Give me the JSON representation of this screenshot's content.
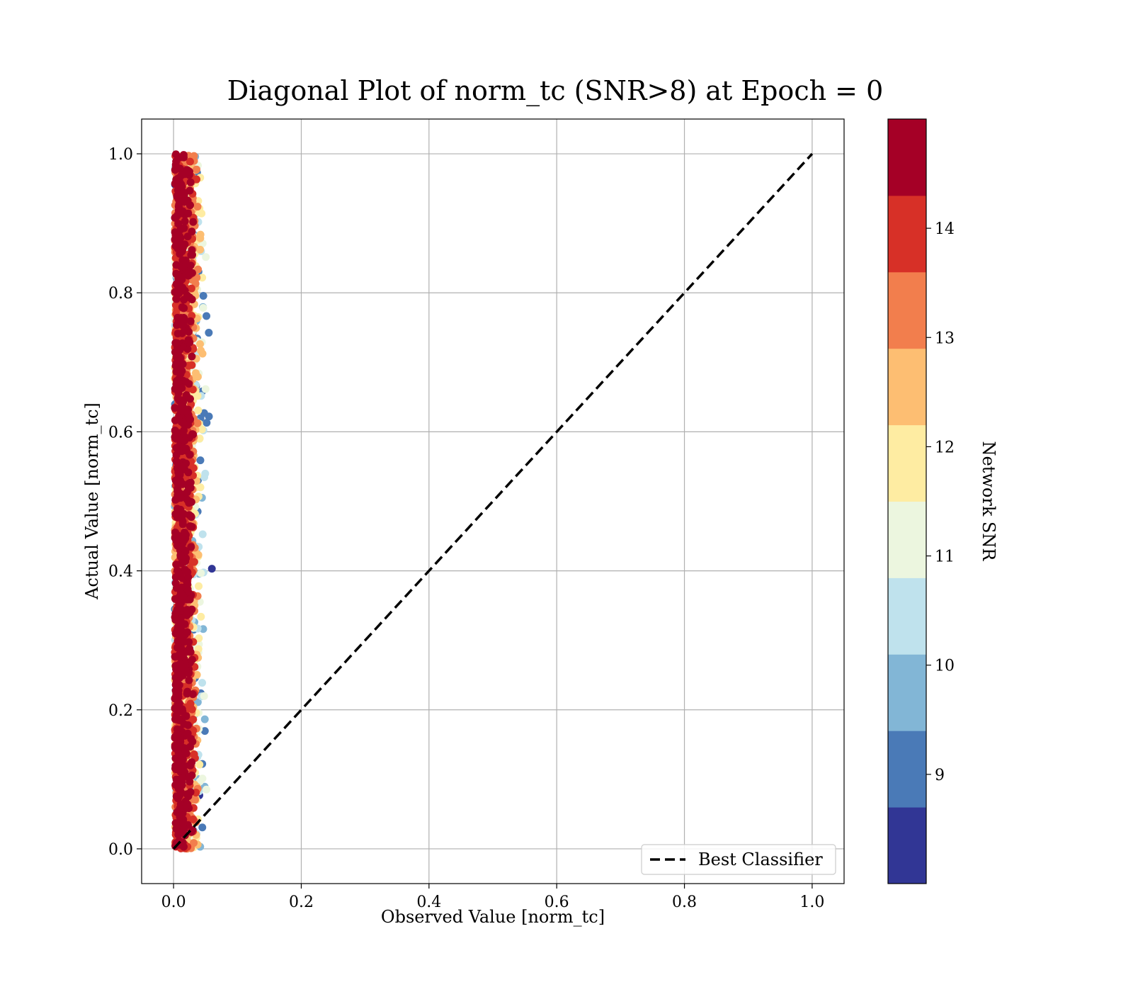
{
  "chart_data": {
    "type": "scatter",
    "title": "Diagonal Plot of norm_tc (SNR>8) at Epoch = 0",
    "xlabel": "Observed Value [norm_tc]",
    "ylabel": "Actual Value [norm_tc]",
    "xlim": [
      -0.05,
      1.05
    ],
    "ylim": [
      -0.05,
      1.05
    ],
    "xticks": [
      "0.0",
      "0.2",
      "0.4",
      "0.6",
      "0.8",
      "1.0"
    ],
    "xtick_values": [
      0,
      0.2,
      0.4,
      0.6,
      0.8,
      1.0
    ],
    "yticks": [
      "0.0",
      "0.2",
      "0.4",
      "0.6",
      "0.8",
      "1.0"
    ],
    "ytick_values": [
      0,
      0.2,
      0.4,
      0.6,
      0.8,
      1.0
    ],
    "grid": true,
    "scatter_region": {
      "x_range": [
        0.0,
        0.06
      ],
      "y_range": [
        0.0,
        1.0
      ],
      "note_colors": "colored by Network SNR"
    },
    "reference_line": {
      "name": "Best Classifier",
      "x": [
        0,
        1
      ],
      "y": [
        0,
        1
      ],
      "style": "dashed",
      "color": "#000000"
    },
    "legend": {
      "placement": "lower-right",
      "entries": [
        "Best Classifier"
      ]
    },
    "colorbar": {
      "label": "Network SNR",
      "range": [
        8,
        15
      ],
      "ticks": [
        "9",
        "10",
        "11",
        "12",
        "13",
        "14"
      ],
      "tick_values": [
        9,
        10,
        11,
        12,
        13,
        14
      ],
      "colors": [
        "#313695",
        "#4a7ab7",
        "#82b6d6",
        "#bfe2ed",
        "#ecf6df",
        "#feeca2",
        "#fdbe72",
        "#f27e4d",
        "#d73027",
        "#a50026"
      ]
    }
  }
}
